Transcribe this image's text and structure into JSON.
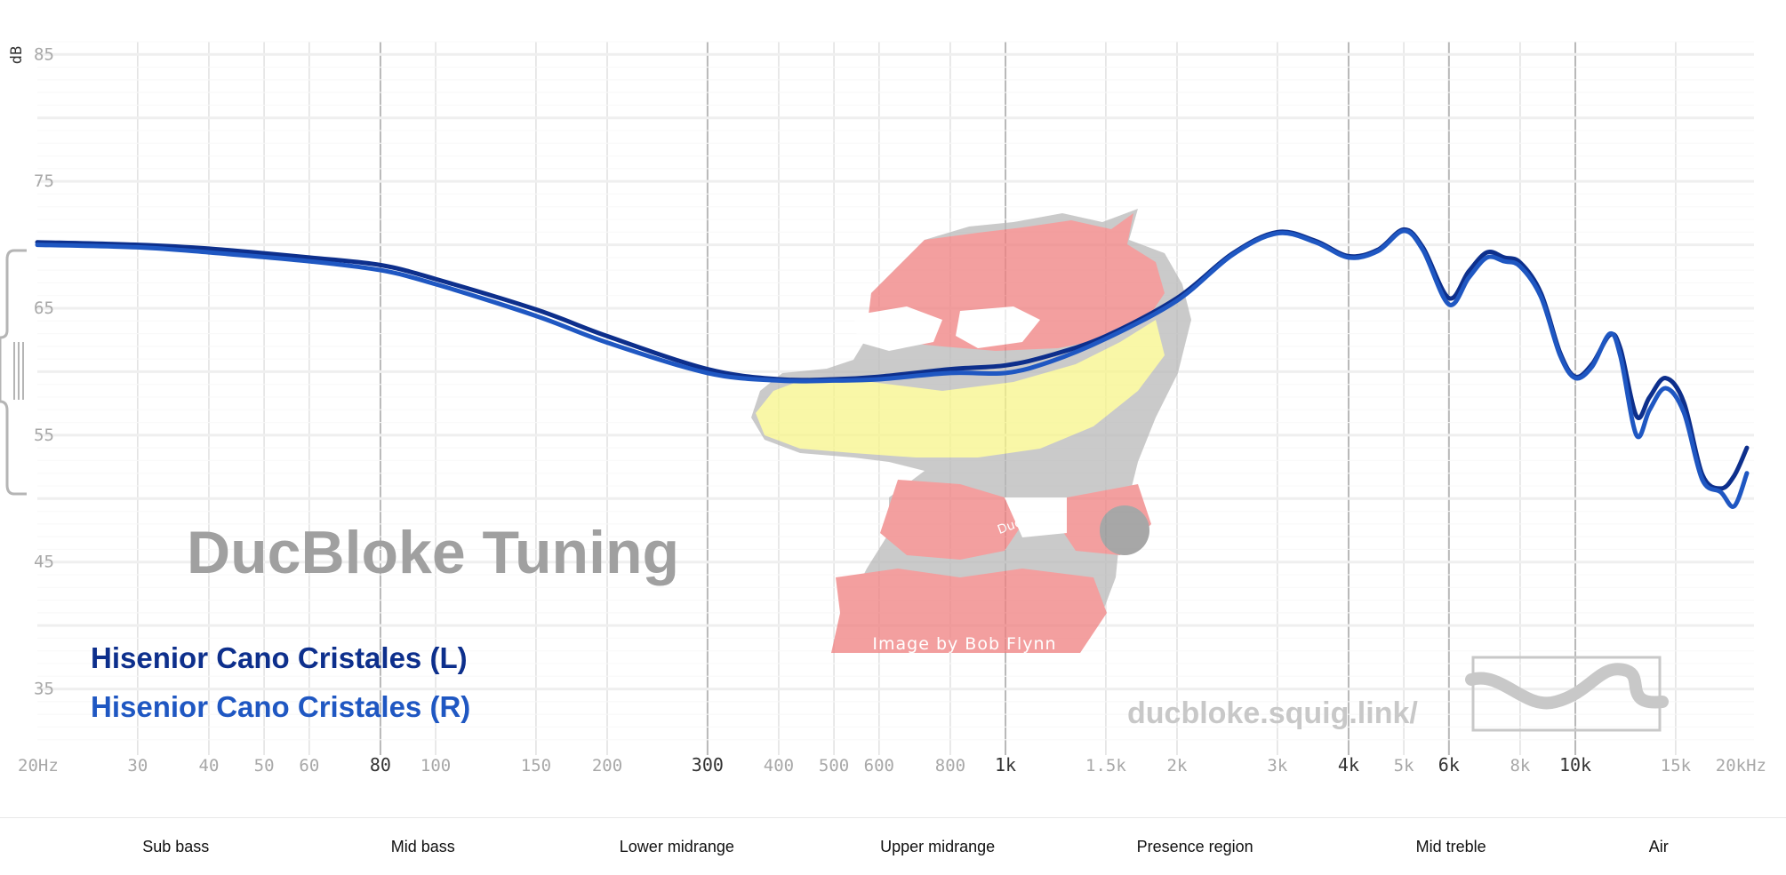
{
  "chart_data": {
    "type": "line",
    "title": "",
    "xlabel": "",
    "ylabel": "dB",
    "xscale": "log",
    "xlim": [
      20,
      20000
    ],
    "ylim": [
      30,
      86
    ],
    "grid": true,
    "legend_placement": "bottom-left",
    "y_ticks": [
      "85",
      "75",
      "65",
      "55",
      "45",
      "35"
    ],
    "x_ticks": [
      {
        "label": "20Hz",
        "value": 20,
        "major": false
      },
      {
        "label": "30",
        "value": 30,
        "major": false
      },
      {
        "label": "40",
        "value": 40,
        "major": false
      },
      {
        "label": "50",
        "value": 50,
        "major": false
      },
      {
        "label": "60",
        "value": 60,
        "major": false
      },
      {
        "label": "80",
        "value": 80,
        "major": true
      },
      {
        "label": "100",
        "value": 100,
        "major": false
      },
      {
        "label": "150",
        "value": 150,
        "major": false
      },
      {
        "label": "200",
        "value": 200,
        "major": false
      },
      {
        "label": "300",
        "value": 300,
        "major": true
      },
      {
        "label": "400",
        "value": 400,
        "major": false
      },
      {
        "label": "500",
        "value": 500,
        "major": false
      },
      {
        "label": "600",
        "value": 600,
        "major": false
      },
      {
        "label": "800",
        "value": 800,
        "major": false
      },
      {
        "label": "1k",
        "value": 1000,
        "major": true
      },
      {
        "label": "1.5k",
        "value": 1500,
        "major": false
      },
      {
        "label": "2k",
        "value": 2000,
        "major": false
      },
      {
        "label": "3k",
        "value": 3000,
        "major": false
      },
      {
        "label": "4k",
        "value": 4000,
        "major": true
      },
      {
        "label": "5k",
        "value": 5000,
        "major": false
      },
      {
        "label": "6k",
        "value": 6000,
        "major": true
      },
      {
        "label": "8k",
        "value": 8000,
        "major": false
      },
      {
        "label": "10k",
        "value": 10000,
        "major": true
      },
      {
        "label": "15k",
        "value": 15000,
        "major": false
      },
      {
        "label": "20kHz",
        "value": 20000,
        "major": false
      }
    ],
    "series": [
      {
        "name": "Hisenior Cano Cristales (L)",
        "color": "#0d2f8c",
        "points": [
          [
            20,
            70.2
          ],
          [
            30,
            70.0
          ],
          [
            40,
            69.7
          ],
          [
            60,
            69.0
          ],
          [
            80,
            68.4
          ],
          [
            100,
            67.3
          ],
          [
            150,
            64.9
          ],
          [
            200,
            62.8
          ],
          [
            300,
            60.2
          ],
          [
            400,
            59.4
          ],
          [
            500,
            59.4
          ],
          [
            600,
            59.6
          ],
          [
            800,
            60.2
          ],
          [
            1000,
            60.5
          ],
          [
            1200,
            61.3
          ],
          [
            1500,
            62.8
          ],
          [
            2000,
            65.8
          ],
          [
            2500,
            69.3
          ],
          [
            3000,
            71.0
          ],
          [
            3500,
            70.3
          ],
          [
            4000,
            69.1
          ],
          [
            4500,
            69.6
          ],
          [
            5000,
            71.2
          ],
          [
            5400,
            69.8
          ],
          [
            6000,
            65.8
          ],
          [
            6500,
            67.9
          ],
          [
            7000,
            69.4
          ],
          [
            7500,
            69.0
          ],
          [
            8000,
            68.6
          ],
          [
            8700,
            66.2
          ],
          [
            9400,
            61.5
          ],
          [
            10000,
            59.6
          ],
          [
            10700,
            60.6
          ],
          [
            11500,
            62.9
          ],
          [
            12000,
            61.8
          ],
          [
            12800,
            56.5
          ],
          [
            13500,
            58.0
          ],
          [
            14400,
            59.5
          ],
          [
            15500,
            57.6
          ],
          [
            16700,
            51.9
          ],
          [
            18000,
            50.8
          ],
          [
            19000,
            51.8
          ],
          [
            20000,
            54.0
          ]
        ]
      },
      {
        "name": "Hisenior Cano Cristales (R)",
        "color": "#1f57c2",
        "points": [
          [
            20,
            70.0
          ],
          [
            30,
            69.8
          ],
          [
            40,
            69.4
          ],
          [
            60,
            68.7
          ],
          [
            80,
            68.0
          ],
          [
            100,
            66.9
          ],
          [
            150,
            64.4
          ],
          [
            200,
            62.3
          ],
          [
            300,
            59.9
          ],
          [
            400,
            59.3
          ],
          [
            500,
            59.3
          ],
          [
            600,
            59.4
          ],
          [
            800,
            59.9
          ],
          [
            1000,
            59.9
          ],
          [
            1200,
            60.8
          ],
          [
            1500,
            62.6
          ],
          [
            2000,
            65.6
          ],
          [
            2500,
            69.2
          ],
          [
            3000,
            70.9
          ],
          [
            3500,
            70.2
          ],
          [
            4000,
            69.0
          ],
          [
            4500,
            69.5
          ],
          [
            5000,
            71.1
          ],
          [
            5400,
            69.6
          ],
          [
            6000,
            65.3
          ],
          [
            6500,
            67.4
          ],
          [
            7000,
            69.0
          ],
          [
            7500,
            68.7
          ],
          [
            8000,
            68.3
          ],
          [
            8700,
            65.9
          ],
          [
            9400,
            61.3
          ],
          [
            10000,
            59.5
          ],
          [
            10700,
            60.4
          ],
          [
            11500,
            63.0
          ],
          [
            12000,
            61.2
          ],
          [
            12800,
            55.0
          ],
          [
            13500,
            57.0
          ],
          [
            14400,
            58.7
          ],
          [
            15500,
            56.8
          ],
          [
            16700,
            51.5
          ],
          [
            18000,
            50.5
          ],
          [
            19000,
            49.4
          ],
          [
            20000,
            52.0
          ]
        ]
      }
    ],
    "bands": [
      {
        "label": "Sub bass",
        "center": 35
      },
      {
        "label": "Mid bass",
        "center": 95
      },
      {
        "label": "Lower midrange",
        "center": 265
      },
      {
        "label": "Upper midrange",
        "center": 760
      },
      {
        "label": "Presence region",
        "center": 2150
      },
      {
        "label": "Mid treble",
        "center": 6050
      },
      {
        "label": "Air",
        "center": 14000
      }
    ]
  },
  "watermark": {
    "title": "DucBloke Tuning",
    "url": "ducbloke.squig.link/",
    "image_credit": "Image by Bob Flynn",
    "badge": "DucBloke"
  }
}
